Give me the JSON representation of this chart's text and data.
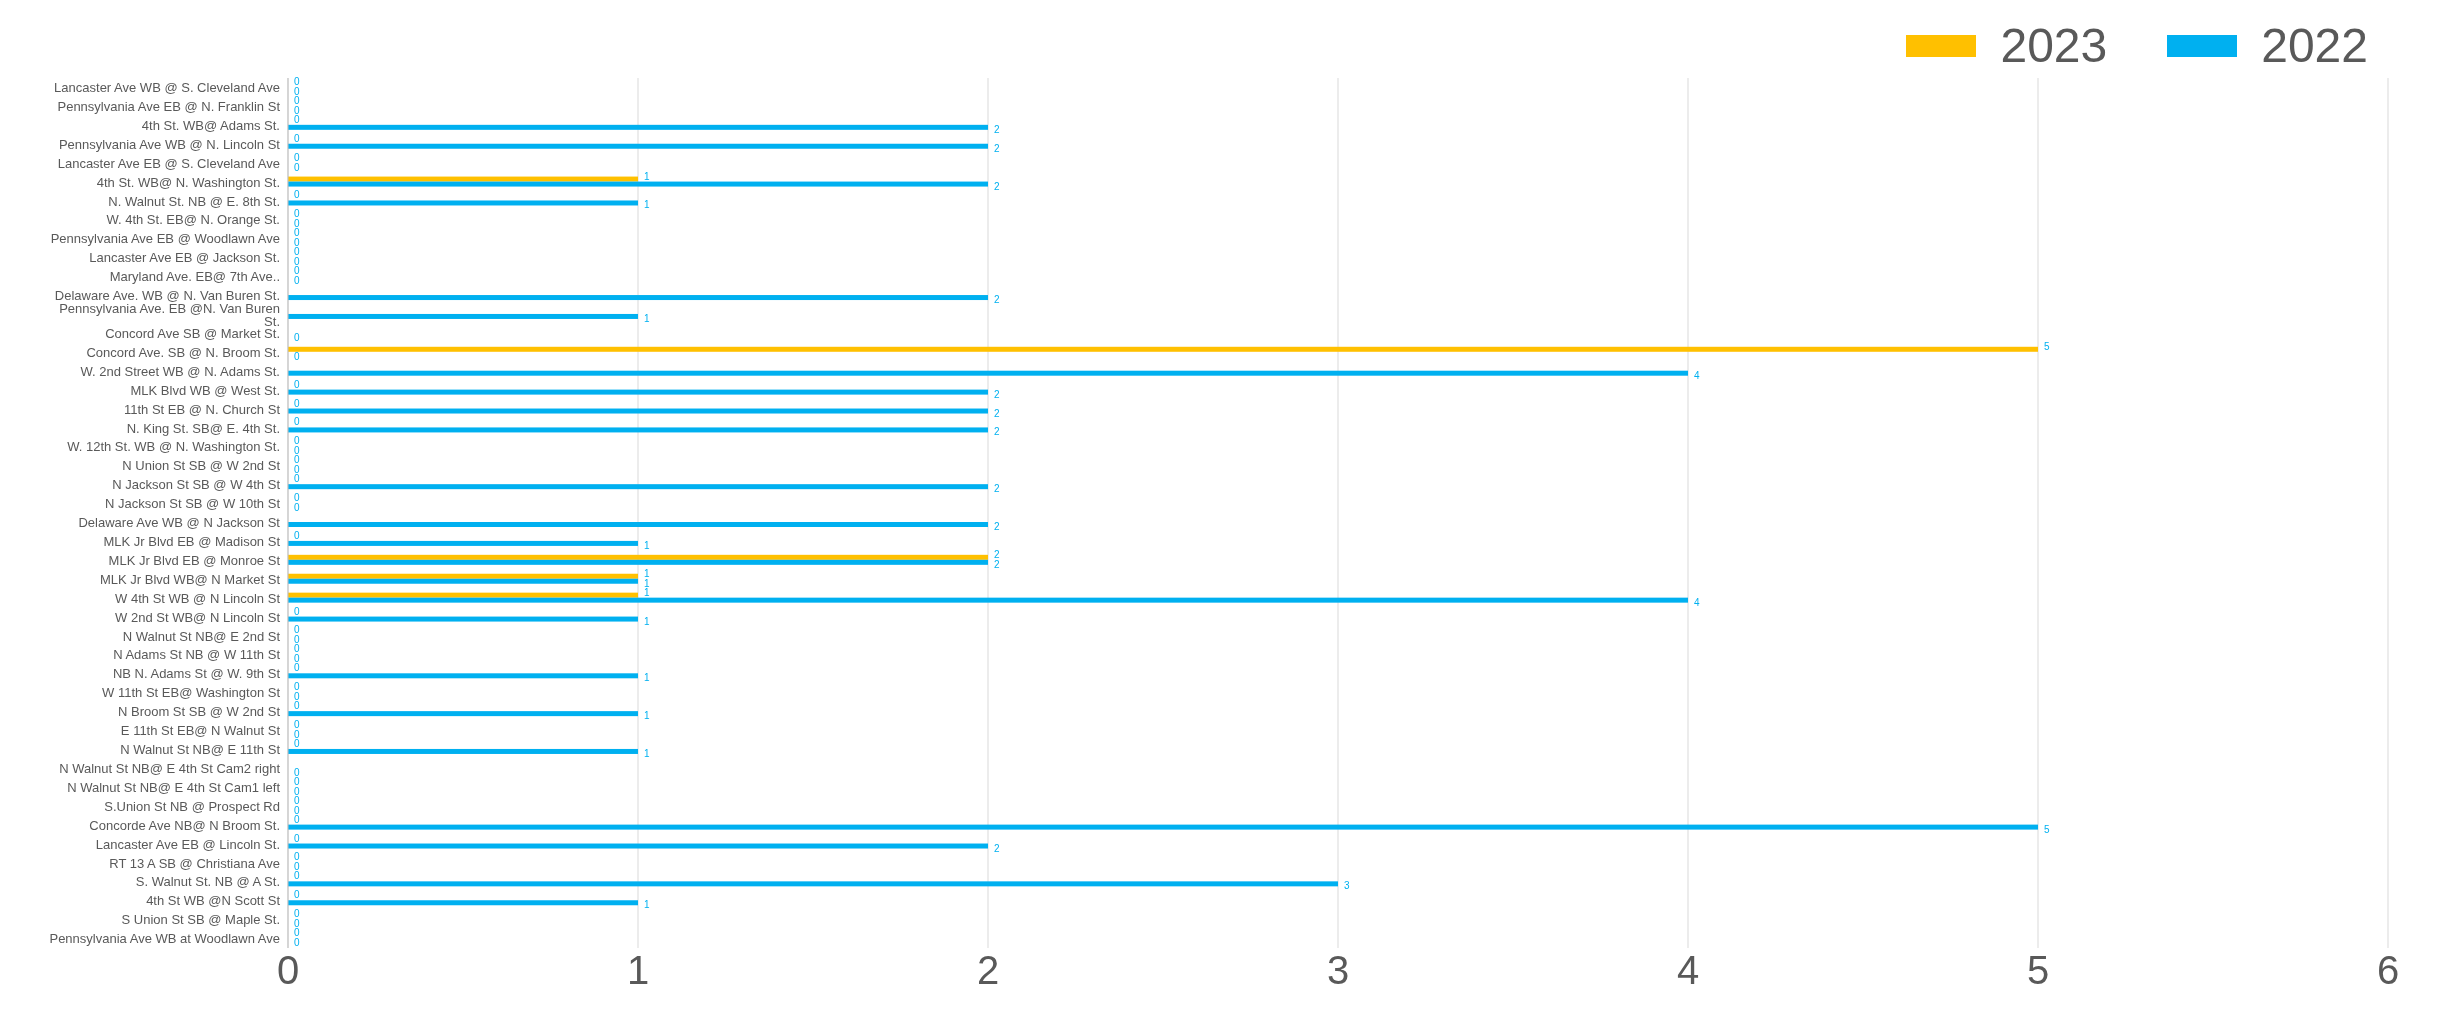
{
  "chart_data": {
    "type": "bar",
    "orientation": "horizontal",
    "categories": [
      "Lancaster Ave WB @ S. Cleveland Ave",
      "Pennsylvania Ave EB @ N. Franklin St",
      "4th St. WB@ Adams St.",
      "Pennsylvania Ave WB @ N. Lincoln St",
      "Lancaster Ave EB @ S. Cleveland Ave",
      "4th St. WB@ N. Washington St.",
      "N. Walnut St. NB @ E. 8th St.",
      "W. 4th St. EB@ N. Orange St.",
      "Pennsylvania Ave EB @ Woodlawn Ave",
      "Lancaster Ave EB @ Jackson St.",
      "Maryland Ave. EB@ 7th Ave..",
      "Delaware Ave. WB @ N. Van Buren St.",
      "Pennsylvania Ave. EB @N. Van Buren St.",
      "Concord Ave SB @ Market St.",
      "Concord Ave. SB @ N. Broom St.",
      "W. 2nd Street WB @ N. Adams St.",
      "MLK Blvd WB @ West St.",
      "11th St EB @ N. Church St",
      "N. King St. SB@ E. 4th St.",
      "W. 12th St. WB @ N. Washington St.",
      "N Union St SB @ W 2nd St",
      "N Jackson St SB @ W 4th St",
      "N Jackson St SB @ W 10th St",
      "Delaware Ave WB @ N Jackson St",
      "MLK Jr Blvd EB @ Madison St",
      "MLK Jr Blvd EB @ Monroe St",
      "MLK Jr Blvd WB@ N Market St",
      "W 4th St WB @ N Lincoln St",
      "W 2nd St WB@ N Lincoln St",
      "N Walnut St NB@ E 2nd St",
      "N Adams St NB @ W 11th St",
      "NB N. Adams St @ W. 9th St",
      "W 11th St EB@ Washington St",
      "N Broom St SB @ W 2nd St",
      "E 11th St EB@ N Walnut St",
      "N Walnut St NB@ E 11th St",
      "N Walnut St NB@ E 4th St Cam2 right",
      "N Walnut St NB@ E 4th St Cam1 left",
      "S.Union St NB @ Prospect Rd",
      "Concorde Ave NB@ N Broom St.",
      "Lancaster Ave EB @ Lincoln St.",
      "RT 13 A SB @ Christiana Ave",
      "S. Walnut St. NB @ A St.",
      "4th St WB @N Scott St",
      "S Union St SB @ Maple St.",
      "Pennsylvania Ave WB at Woodlawn Ave"
    ],
    "series": [
      {
        "name": "2023",
        "color": "#ffc000",
        "values": [
          0,
          0,
          0,
          0,
          0,
          1,
          0,
          0,
          0,
          0,
          0,
          null,
          null,
          null,
          5,
          null,
          0,
          0,
          0,
          0,
          0,
          0,
          0,
          null,
          0,
          2,
          1,
          1,
          0,
          0,
          0,
          0,
          0,
          0,
          0,
          0,
          null,
          0,
          0,
          0,
          0,
          0,
          0,
          0,
          0,
          0
        ]
      },
      {
        "name": "2022",
        "color": "#00b0f0",
        "values": [
          0,
          0,
          2,
          2,
          0,
          2,
          1,
          0,
          0,
          0,
          0,
          2,
          1,
          0,
          0,
          4,
          2,
          2,
          2,
          0,
          0,
          2,
          0,
          2,
          1,
          2,
          1,
          4,
          1,
          0,
          0,
          1,
          0,
          1,
          0,
          1,
          0,
          0,
          0,
          5,
          2,
          0,
          3,
          1,
          0,
          0
        ]
      }
    ],
    "xlim": [
      0,
      6
    ],
    "xticks": [
      0,
      1,
      2,
      3,
      4,
      5,
      6
    ],
    "grid": "x",
    "legend": "top right",
    "data_labels": true
  }
}
